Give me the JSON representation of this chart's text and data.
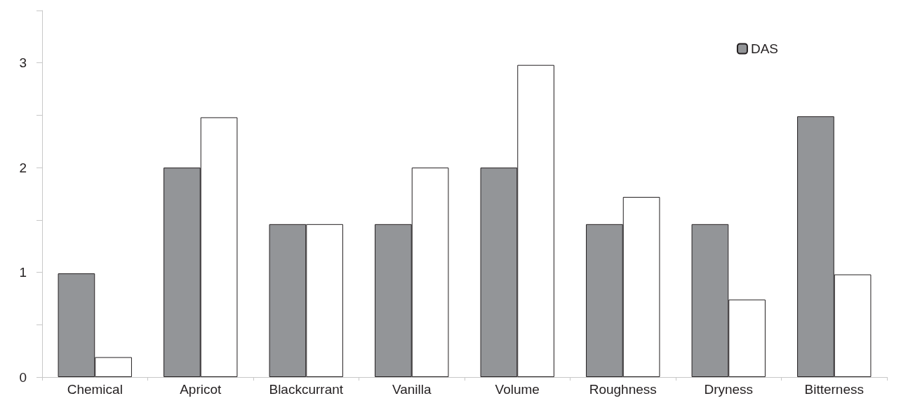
{
  "chart_data": {
    "type": "bar",
    "categories": [
      "Chemical",
      "Apricot",
      "Blackcurrant",
      "Vanilla",
      "Volume",
      "Roughness",
      "Dryness",
      "Bitterness"
    ],
    "series": [
      {
        "name": "DAS",
        "color": "#939598",
        "values": [
          0.99,
          2.0,
          1.46,
          1.46,
          2.0,
          1.46,
          1.46,
          2.49
        ]
      },
      {
        "color": "#ffffff",
        "values": [
          0.19,
          2.48,
          1.46,
          2.0,
          2.98,
          1.72,
          0.74,
          0.98
        ]
      }
    ],
    "ylim": [
      0,
      3.5
    ],
    "yticks": [
      0,
      {
        "value": 0.5,
        "label": null
      },
      1,
      {
        "value": 1.5,
        "label": null
      },
      2,
      {
        "value": 2.5,
        "label": null
      },
      3,
      {
        "value": 3.5,
        "label": null
      }
    ],
    "grid": false,
    "legend": "top right"
  }
}
